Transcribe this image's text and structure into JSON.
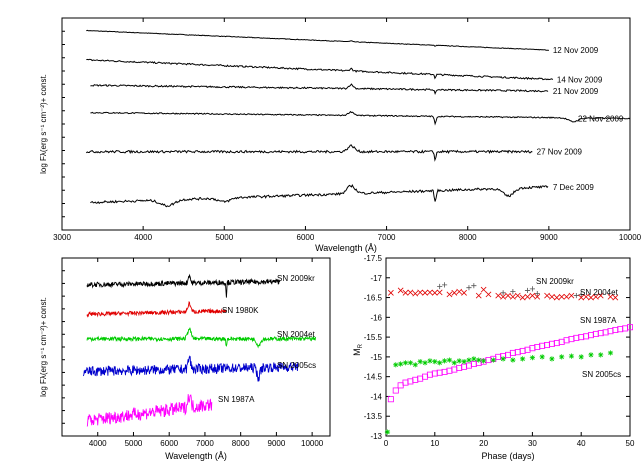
{
  "figure": {
    "panels": [
      "top-spectra",
      "bottom-left-comparison",
      "bottom-right-lightcurve"
    ]
  },
  "chart_data": [
    {
      "type": "line",
      "panel": "top-spectra",
      "xlabel": "Wavelength (Å)",
      "ylabel": "log Fλ(erg s⁻¹ cm⁻²)+ const.",
      "xlim": [
        3000,
        10000
      ],
      "xticks": [
        3000,
        4000,
        5000,
        6000,
        7000,
        8000,
        9000,
        10000
      ],
      "y_ticks_labeled": false,
      "grid": false,
      "series": [
        {
          "name": "12 Nov 2009",
          "x_range": [
            3300,
            9000
          ],
          "y_start": 1.0,
          "y_end": 0.9,
          "noise": 0.0015,
          "features": [
            [
              6563,
              0.004,
              20
            ],
            [
              7600,
              -0.008,
              8
            ]
          ]
        },
        {
          "name": "14 Nov 2009",
          "x_range": [
            3300,
            9050
          ],
          "y_start": 0.85,
          "y_end": 0.75,
          "noise": 0.004,
          "features": [
            [
              6563,
              0.012,
              25
            ],
            [
              7600,
              -0.02,
              10
            ]
          ]
        },
        {
          "name": "21 Nov 2009",
          "x_range": [
            3350,
            9000
          ],
          "y_start": 0.72,
          "y_end": 0.69,
          "noise": 0.004,
          "features": [
            [
              6563,
              0.02,
              40
            ],
            [
              7600,
              -0.025,
              12
            ]
          ]
        },
        {
          "name": "22 Nov 2009",
          "x_range": [
            3350,
            10000
          ],
          "y_start": 0.58,
          "y_end": 0.55,
          "noise": 0.003,
          "features": [
            [
              6563,
              0.018,
              50
            ],
            [
              7600,
              -0.04,
              15
            ],
            [
              9300,
              -0.02,
              80
            ]
          ]
        },
        {
          "name": "27 Nov 2009",
          "x_range": [
            3300,
            8800
          ],
          "y_start": 0.38,
          "y_end": 0.38,
          "noise": 0.006,
          "features": [
            [
              6563,
              0.03,
              60
            ],
            [
              7600,
              -0.04,
              15
            ]
          ]
        },
        {
          "name": "7 Dec 2009",
          "x_range": [
            3350,
            9000
          ],
          "y_start": 0.12,
          "y_end": 0.2,
          "noise": 0.006,
          "features": [
            [
              4300,
              -0.03,
              120
            ],
            [
              5000,
              -0.02,
              100
            ],
            [
              6563,
              0.04,
              70
            ],
            [
              7600,
              -0.06,
              15
            ],
            [
              8500,
              -0.04,
              90
            ]
          ]
        }
      ]
    },
    {
      "type": "line",
      "panel": "bottom-left-comparison",
      "xlabel": "Wavelength (Å)",
      "ylabel": "log Fλ(erg s⁻¹ cm⁻²)+ const.",
      "xlim": [
        3000,
        10500
      ],
      "xticks": [
        4000,
        5000,
        6000,
        7000,
        8000,
        9000,
        10000
      ],
      "y_ticks_labeled": false,
      "series": [
        {
          "name": "SN 2009kr",
          "color": "#000000",
          "x_range": [
            3700,
            9100
          ],
          "y_start": 0.88,
          "y_end": 0.9,
          "noise": 0.015,
          "features": [
            [
              6563,
              0.05,
              40
            ],
            [
              7600,
              -0.08,
              15
            ]
          ]
        },
        {
          "name": "SN 1980K",
          "color": "#e00000",
          "x_range": [
            3700,
            7600
          ],
          "y_start": 0.7,
          "y_end": 0.72,
          "noise": 0.012,
          "features": [
            [
              6563,
              0.05,
              60
            ]
          ]
        },
        {
          "name": "SN 2004et",
          "color": "#00cc00",
          "x_range": [
            3700,
            10100
          ],
          "y_start": 0.55,
          "y_end": 0.55,
          "noise": 0.012,
          "features": [
            [
              6563,
              0.06,
              70
            ],
            [
              7600,
              -0.05,
              15
            ],
            [
              8500,
              -0.04,
              80
            ]
          ]
        },
        {
          "name": "SN 2005cs",
          "color": "#0000cc",
          "x_range": [
            3600,
            9600
          ],
          "y_start": 0.35,
          "y_end": 0.38,
          "noise": 0.03,
          "features": [
            [
              6563,
              0.07,
              50
            ],
            [
              8500,
              -0.06,
              60
            ]
          ]
        },
        {
          "name": "SN 1987A",
          "color": "#ff00ff",
          "x_range": [
            3700,
            7200
          ],
          "y_start": 0.05,
          "y_end": 0.15,
          "noise": 0.04,
          "features": [
            [
              6563,
              0.07,
              60
            ]
          ]
        }
      ]
    },
    {
      "type": "scatter",
      "panel": "bottom-right-lightcurve",
      "xlabel": "Phase (days)",
      "ylabel": "MR",
      "xlim": [
        0,
        50
      ],
      "ylim": [
        -17.5,
        -13.0
      ],
      "y_inverted": true,
      "xticks": [
        0,
        10,
        20,
        30,
        40,
        50
      ],
      "yticks": [
        -17.5,
        -17,
        -16.5,
        -16,
        -15.5,
        -15,
        -14.5,
        -14,
        -13.5,
        -13
      ],
      "series": [
        {
          "name": "SN 2009kr",
          "marker": "plus",
          "color": "#555555",
          "x": [
            11,
            12,
            17,
            18,
            24,
            26,
            29,
            30,
            31,
            39,
            40
          ],
          "y": [
            -16.78,
            -16.82,
            -16.75,
            -16.8,
            -16.62,
            -16.65,
            -16.68,
            -16.72,
            -16.6,
            -16.55,
            -16.58
          ]
        },
        {
          "name": "SN 2004et",
          "marker": "cross",
          "color": "#e00000",
          "x": [
            1,
            3,
            4,
            5,
            6,
            7,
            8,
            9,
            10,
            11,
            13,
            14,
            15,
            16,
            19,
            20,
            21,
            23,
            24,
            25,
            26,
            27,
            28,
            29,
            30,
            31,
            33,
            34,
            35,
            36,
            37,
            38,
            40,
            41,
            42,
            43,
            44,
            46,
            47
          ],
          "y": [
            -16.62,
            -16.68,
            -16.62,
            -16.63,
            -16.6,
            -16.63,
            -16.62,
            -16.63,
            -16.62,
            -16.63,
            -16.58,
            -16.62,
            -16.65,
            -16.62,
            -16.55,
            -16.7,
            -16.58,
            -16.55,
            -16.52,
            -16.55,
            -16.52,
            -16.55,
            -16.5,
            -16.52,
            -16.55,
            -16.52,
            -16.55,
            -16.52,
            -16.5,
            -16.52,
            -16.52,
            -16.55,
            -16.5,
            -16.52,
            -16.5,
            -16.52,
            -16.55,
            -16.52,
            -16.5
          ]
        },
        {
          "name": "SN 1987A",
          "marker": "square",
          "color": "#ff00ff",
          "x": [
            1,
            2,
            3,
            4,
            5,
            6,
            7,
            8,
            9,
            10,
            11,
            12,
            13,
            14,
            15,
            16,
            17,
            18,
            19,
            20,
            21,
            22,
            23,
            24,
            25,
            26,
            27,
            28,
            29,
            30,
            31,
            32,
            33,
            34,
            35,
            36,
            37,
            38,
            39,
            40,
            41,
            42,
            43,
            44,
            45,
            46,
            47,
            48,
            49,
            50
          ],
          "y": [
            -13.93,
            -14.15,
            -14.28,
            -14.35,
            -14.38,
            -14.42,
            -14.45,
            -14.5,
            -14.55,
            -14.58,
            -14.6,
            -14.62,
            -14.65,
            -14.68,
            -14.72,
            -14.75,
            -14.78,
            -14.82,
            -14.85,
            -14.88,
            -14.92,
            -14.95,
            -15.0,
            -15.02,
            -15.05,
            -15.1,
            -15.12,
            -15.15,
            -15.18,
            -15.22,
            -15.25,
            -15.28,
            -15.3,
            -15.33,
            -15.35,
            -15.38,
            -15.42,
            -15.45,
            -15.48,
            -15.5,
            -15.52,
            -15.55,
            -15.58,
            -15.6,
            -15.62,
            -15.65,
            -15.68,
            -15.7,
            -15.72,
            -15.75
          ]
        },
        {
          "name": "SN 2005cs",
          "marker": "star",
          "color": "#00cc00",
          "x": [
            0.3,
            2,
            3,
            4,
            5,
            6,
            7,
            8,
            9,
            10,
            11,
            12,
            13,
            14,
            15,
            16,
            17,
            18,
            19,
            20,
            22,
            24,
            26,
            28,
            30,
            32,
            34,
            36,
            38,
            40,
            42,
            44,
            46
          ],
          "y": [
            -13.1,
            -14.8,
            -14.82,
            -14.85,
            -14.85,
            -14.8,
            -14.88,
            -14.85,
            -14.9,
            -14.88,
            -14.85,
            -14.9,
            -14.92,
            -14.85,
            -14.9,
            -14.88,
            -14.92,
            -14.95,
            -14.92,
            -14.9,
            -14.92,
            -14.95,
            -14.92,
            -14.95,
            -14.98,
            -15.0,
            -14.95,
            -15.0,
            -15.02,
            -15.0,
            -15.05,
            -15.05,
            -15.1
          ]
        }
      ]
    }
  ]
}
